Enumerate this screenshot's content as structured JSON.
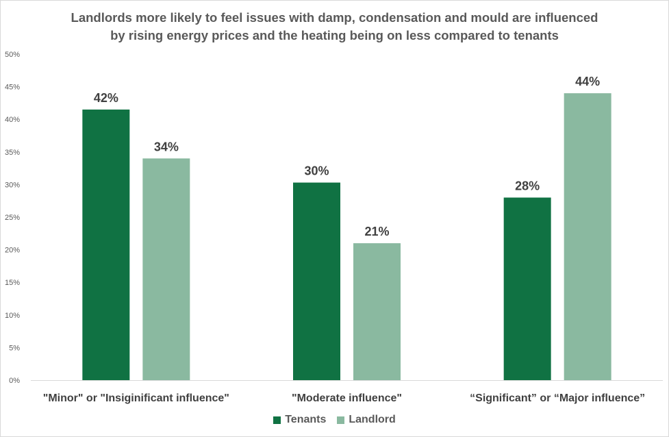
{
  "title_lines": [
    "Landlords  more likely to feel issues with damp,  condensation  and mould are influenced",
    "by rising energy prices  and the heating being on less compared to tenants"
  ],
  "chart_data": {
    "type": "bar",
    "title": "Landlords  more likely to feel issues with damp,  condensation  and mould are influenced by rising energy prices  and the heating being on less compared to tenants",
    "categories": [
      "\"Minor\" or \"Insiginificant influence\"",
      "\"Moderate influence\"",
      "“Significant” or “Major influence”"
    ],
    "series": [
      {
        "name": "Tenants",
        "values": [
          41.5,
          30.3,
          28.0
        ],
        "labels": [
          "42%",
          "30%",
          "28%"
        ],
        "color": "#107243"
      },
      {
        "name": "Landlord",
        "values": [
          34.0,
          21.0,
          44.0
        ],
        "labels": [
          "34%",
          "21%",
          "44%"
        ],
        "color": "#8ab9a0"
      }
    ],
    "xlabel": "",
    "ylabel": "",
    "ylim": [
      0,
      50
    ],
    "yticks": [
      0,
      5,
      10,
      15,
      20,
      25,
      30,
      35,
      40,
      45,
      50
    ],
    "ytick_labels": [
      "0%",
      "5%",
      "10%",
      "15%",
      "20%",
      "25%",
      "30%",
      "35%",
      "40%",
      "45%",
      "50%"
    ],
    "grid": false,
    "legend_position": "bottom"
  }
}
